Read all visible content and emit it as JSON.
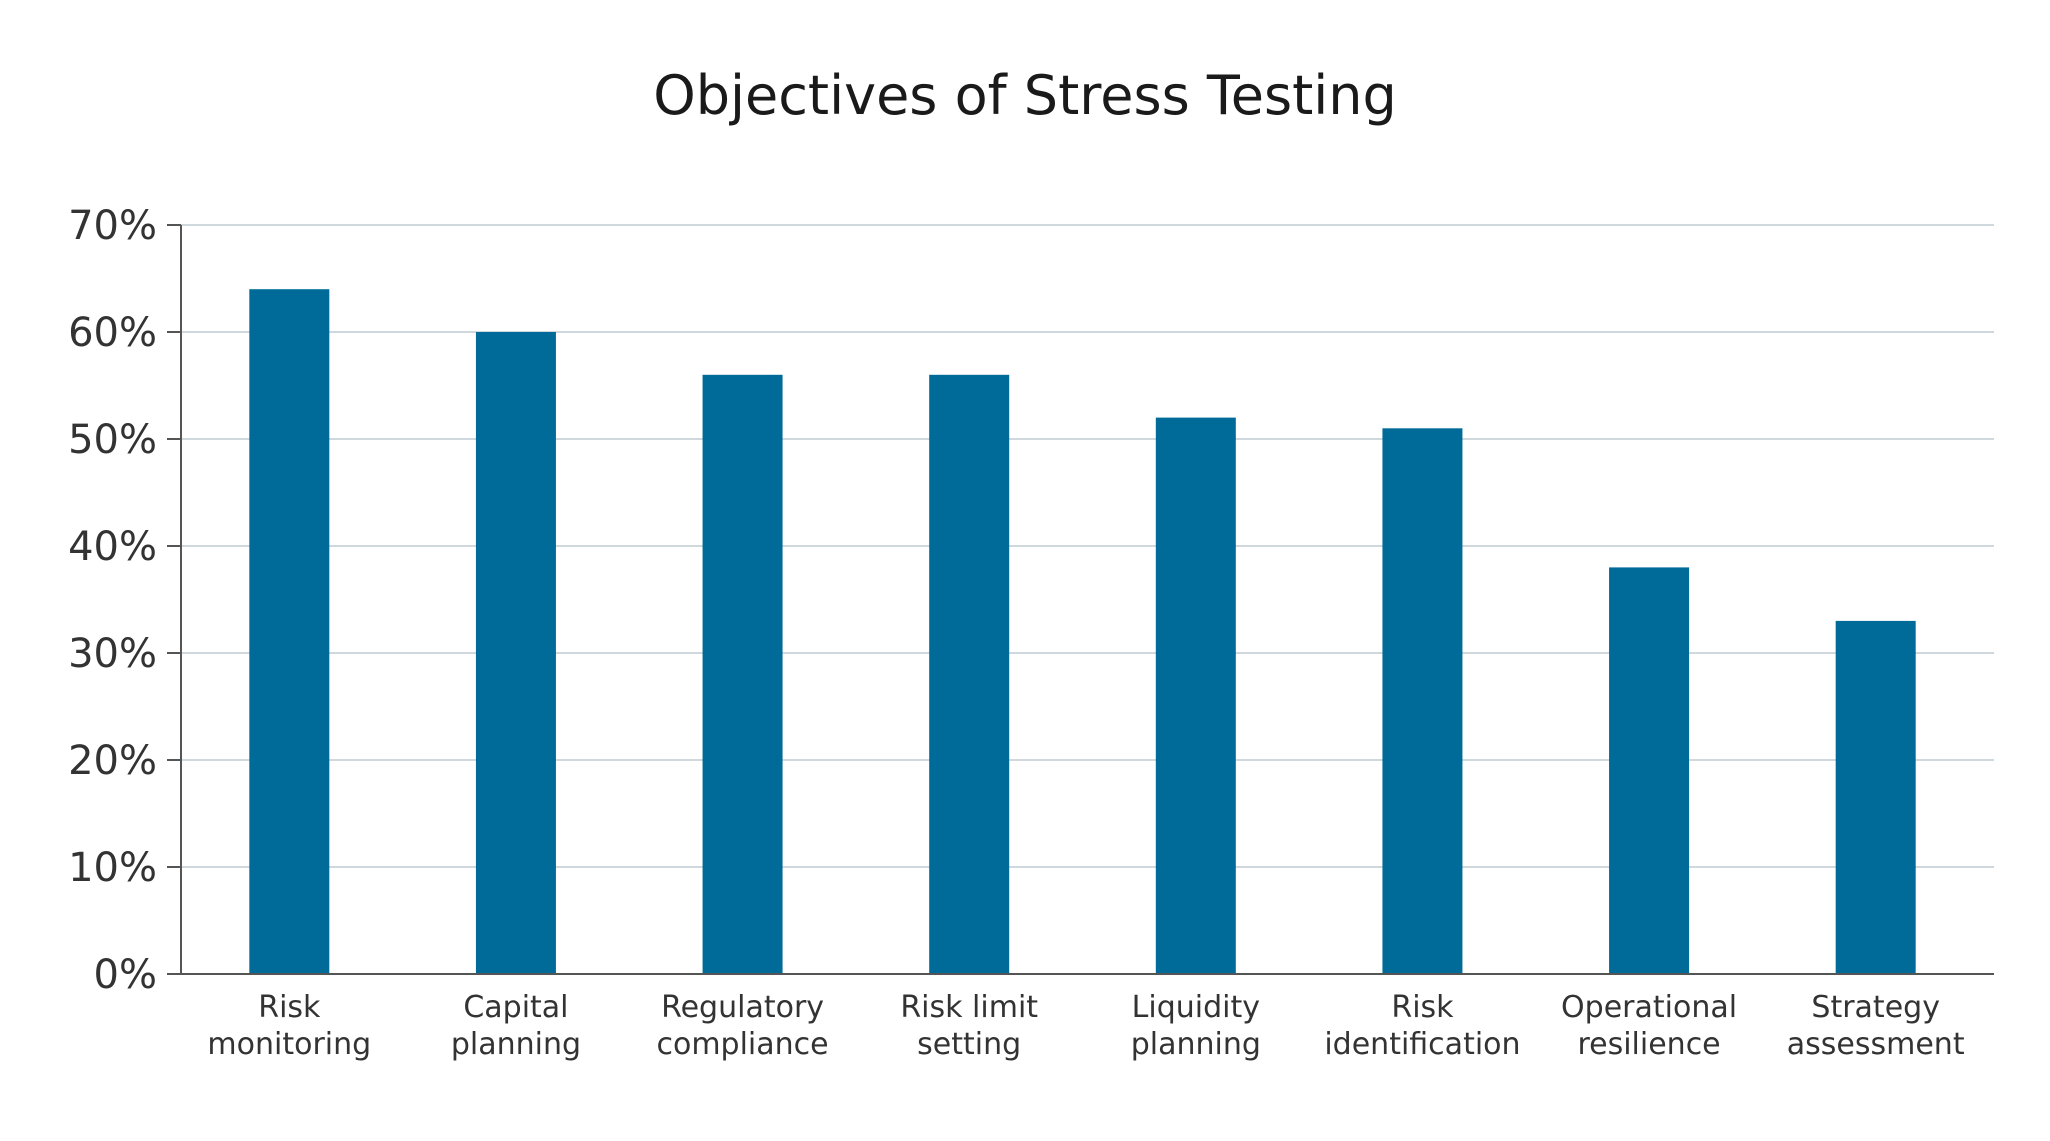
{
  "chart_data": {
    "type": "bar",
    "title": "Objectives of Stress Testing",
    "xlabel": "",
    "ylabel": "",
    "categories": [
      [
        "Risk",
        "monitoring"
      ],
      [
        "Capital",
        "planning"
      ],
      [
        "Regulatory",
        "compliance"
      ],
      [
        "Risk limit",
        "setting"
      ],
      [
        "Liquidity",
        "planning"
      ],
      [
        "Risk",
        "identification"
      ],
      [
        "Operational",
        "resilience"
      ],
      [
        "Strategy",
        "assessment"
      ]
    ],
    "values": [
      64,
      60,
      56,
      56,
      52,
      51,
      38,
      33
    ],
    "ylim": [
      0,
      70
    ],
    "yticks": [
      "0%",
      "10%",
      "20%",
      "30%",
      "40%",
      "50%",
      "60%",
      "70%"
    ],
    "grid": true,
    "legend": "none",
    "colors": {
      "bar": "#006b99",
      "grid": "#cfd8dc",
      "axis": "#555555"
    }
  }
}
